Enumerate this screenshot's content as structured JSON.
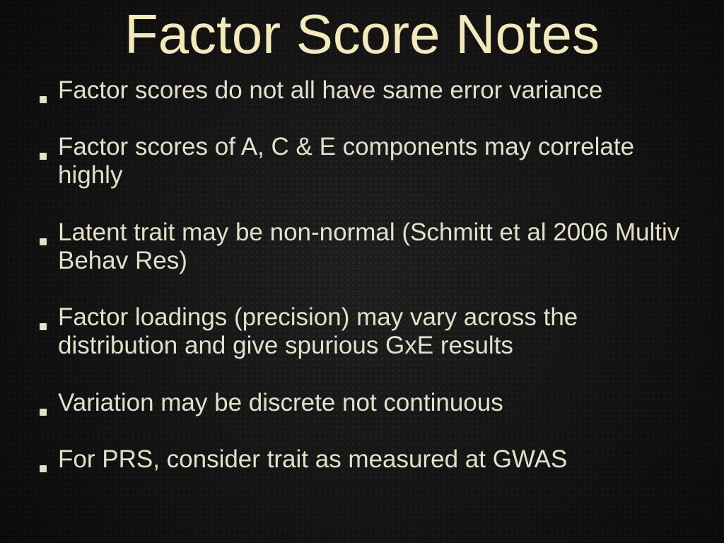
{
  "slide": {
    "title": "Factor Score Notes",
    "title_color": "#f2eab8",
    "title_fontsize": 78,
    "text_color": "#e4e0c8",
    "bullet_fontsize": 35,
    "background_color": "#1a1a1a",
    "bullets": [
      "Factor scores do not all have same error variance",
      "Factor scores of A, C & E components may correlate highly",
      "Latent trait may be non-normal (Schmitt et al 2006 Multiv Behav Res)",
      "Factor loadings (precision) may vary across the distribution and give spurious GxE results",
      "Variation may be discrete not continuous",
      "For PRS, consider trait as measured at GWAS"
    ]
  }
}
